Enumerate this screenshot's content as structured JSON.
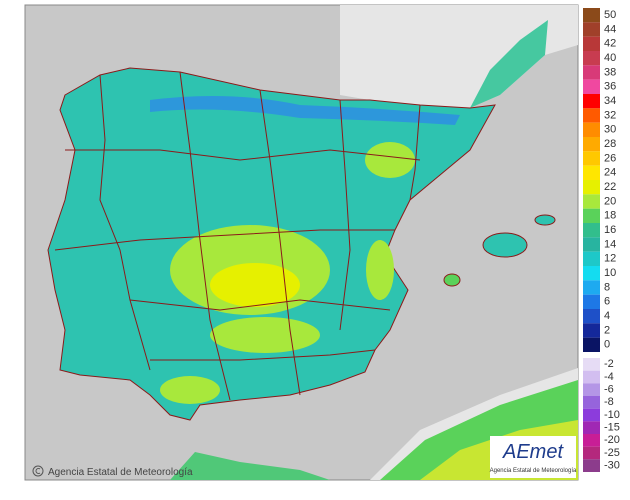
{
  "copyright": "Agencia Estatal de Meteorología",
  "logo": {
    "name": "AEmet",
    "subtitle": "Agencia Estatal de Meteorología"
  },
  "legend": {
    "positive": [
      {
        "label": 50,
        "color": "#8b4a1a"
      },
      {
        "label": 44,
        "color": "#a0402a"
      },
      {
        "label": 42,
        "color": "#b83838"
      },
      {
        "label": 40,
        "color": "#c83c50"
      },
      {
        "label": 38,
        "color": "#d83a78"
      },
      {
        "label": 36,
        "color": "#f048a0"
      },
      {
        "label": 34,
        "color": "#ff0000"
      },
      {
        "label": 32,
        "color": "#ff5a00"
      },
      {
        "label": 30,
        "color": "#ff8c00"
      },
      {
        "label": 28,
        "color": "#ffaa00"
      },
      {
        "label": 26,
        "color": "#ffc800"
      },
      {
        "label": 24,
        "color": "#ffe600"
      },
      {
        "label": 22,
        "color": "#e6f000"
      },
      {
        "label": 20,
        "color": "#a8e83c"
      },
      {
        "label": 18,
        "color": "#5ad25a"
      },
      {
        "label": 16,
        "color": "#32be8c"
      },
      {
        "label": 14,
        "color": "#28b4a0"
      },
      {
        "label": 12,
        "color": "#1ec8c8"
      },
      {
        "label": 10,
        "color": "#14dcf0"
      },
      {
        "label": 8,
        "color": "#1eaaf0"
      },
      {
        "label": 6,
        "color": "#1e78e6"
      },
      {
        "label": 4,
        "color": "#1e50c8"
      },
      {
        "label": 2,
        "color": "#14289a"
      },
      {
        "label": 0,
        "color": "#0a1464"
      }
    ],
    "negative": [
      {
        "label": -2,
        "color": "#e6dcf5"
      },
      {
        "label": -4,
        "color": "#d2bef0"
      },
      {
        "label": -6,
        "color": "#b496e6"
      },
      {
        "label": -8,
        "color": "#9664dc"
      },
      {
        "label": -10,
        "color": "#8c3cdc"
      },
      {
        "label": -15,
        "color": "#a028b4"
      },
      {
        "label": -20,
        "color": "#c81e96"
      },
      {
        "label": -25,
        "color": "#b4287d"
      },
      {
        "label": -30,
        "color": "#8c3c8c"
      }
    ]
  }
}
